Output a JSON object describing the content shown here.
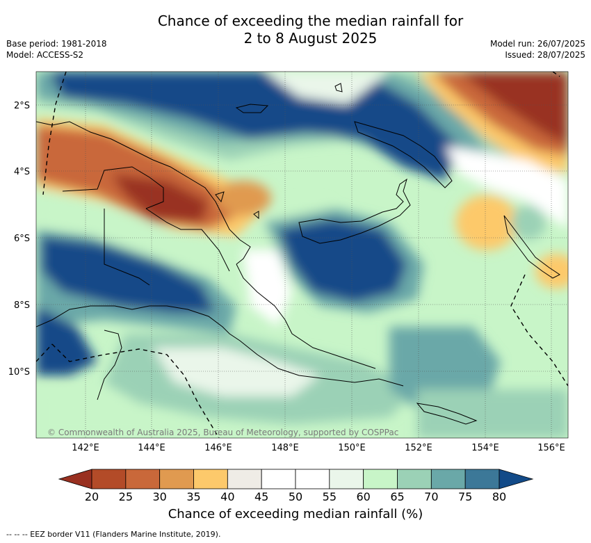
{
  "header": {
    "title_line1": "Chance of exceeding the median rainfall for",
    "title_line2": "2 to 8 August 2025",
    "base_period": "Base period: 1981-2018",
    "model": "Model: ACCESS-S2",
    "model_run": "Model run: 26/07/2025",
    "issued": "Issued: 28/07/2025"
  },
  "map": {
    "region": "Papua New Guinea",
    "lat_labels": [
      "2°S",
      "4°S",
      "6°S",
      "8°S",
      "10°S"
    ],
    "lon_labels": [
      "142°E",
      "144°E",
      "146°E",
      "148°E",
      "150°E",
      "152°E",
      "154°E",
      "156°E"
    ],
    "copyright": "© Commonwealth of Australia 2025, Bureau of Meteorology, supported by COSPPac"
  },
  "colorbar": {
    "ticks": [
      "20",
      "25",
      "30",
      "35",
      "40",
      "45",
      "50",
      "55",
      "60",
      "65",
      "70",
      "75",
      "80"
    ],
    "colors": [
      "#993020",
      "#b34b28",
      "#c9683a",
      "#e09a50",
      "#fdc96b",
      "#efece6",
      "#ffffff",
      "#ffffff",
      "#eaf6ea",
      "#c8f5c8",
      "#9bd1b6",
      "#6aa8a8",
      "#3c7898",
      "#124a88"
    ],
    "label": "Chance of exceeding median rainfall (%)"
  },
  "footer": {
    "legend": "--  --  -- EEZ border V11 (Flanders Marine Institute, 2019)."
  }
}
